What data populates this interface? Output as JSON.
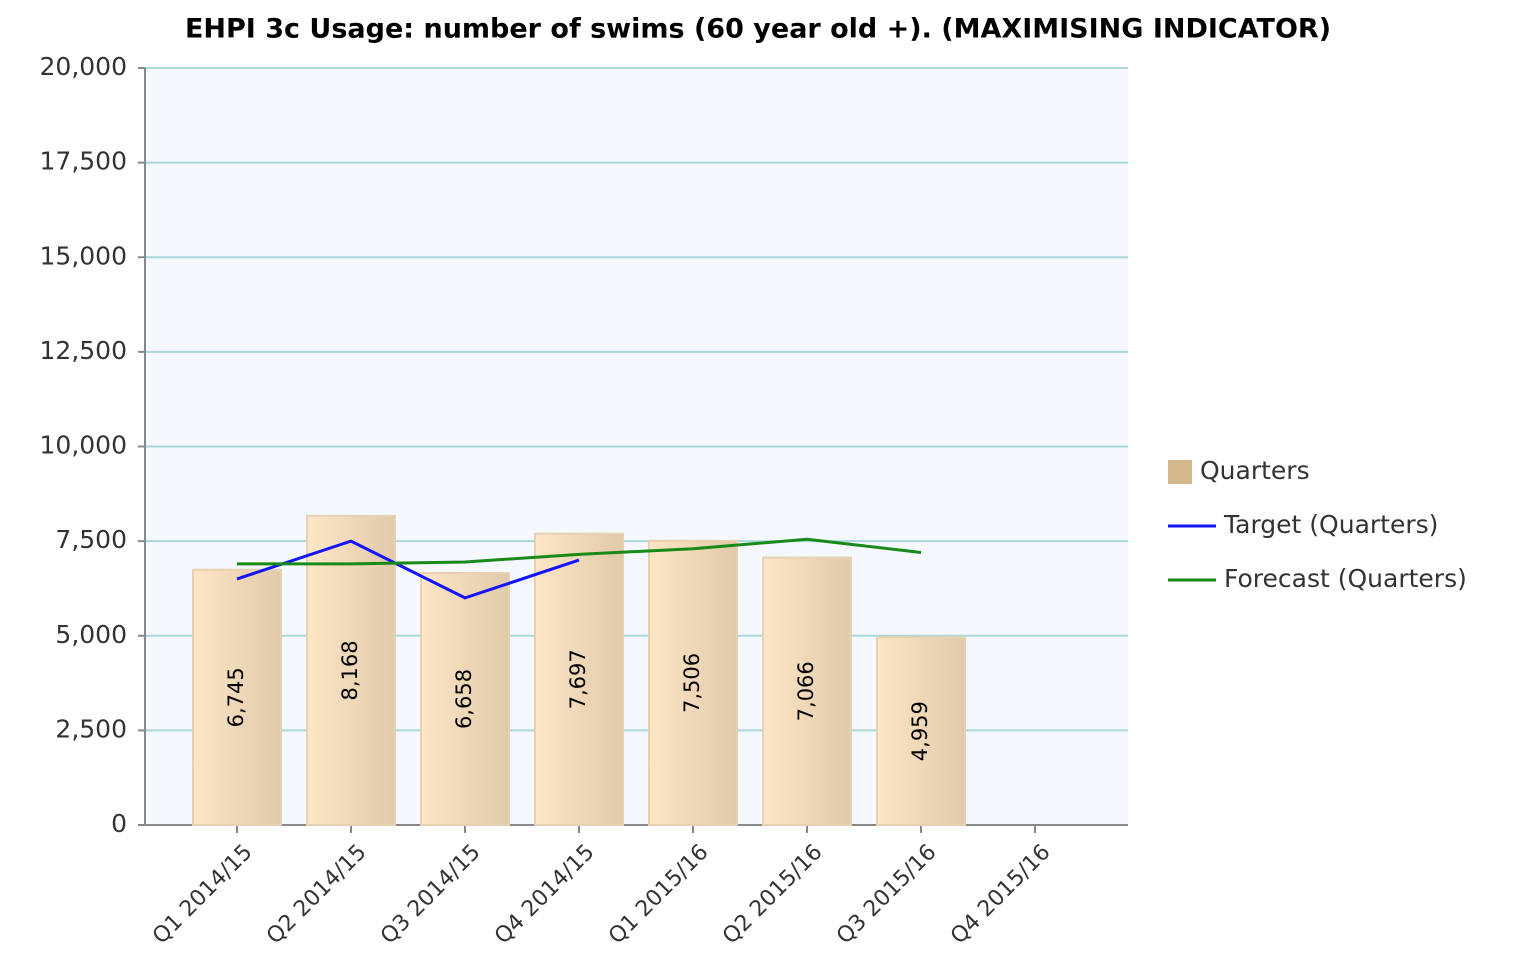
{
  "chart_data": {
    "type": "bar",
    "title": "EHPI 3c Usage: number of swims (60 year old +). (MAXIMISING INDICATOR)",
    "categories": [
      "Q1 2014/15",
      "Q2 2014/15",
      "Q3 2014/15",
      "Q4 2014/15",
      "Q1 2015/16",
      "Q2 2015/16",
      "Q3 2015/16",
      "Q4 2015/16"
    ],
    "series": [
      {
        "name": "Quarters",
        "type": "bar",
        "color": "#d4b88c",
        "values": [
          6745,
          8168,
          6658,
          7697,
          7506,
          7066,
          4959,
          null
        ],
        "value_labels": [
          "6,745",
          "8,168",
          "6,658",
          "7,697",
          "7,506",
          "7,066",
          "4,959",
          null
        ]
      },
      {
        "name": "Target (Quarters)",
        "type": "line",
        "color": "#1414ff",
        "values": [
          6500,
          7500,
          6000,
          7000,
          null,
          null,
          null,
          null
        ]
      },
      {
        "name": "Forecast (Quarters)",
        "type": "line",
        "color": "#178a17",
        "values": [
          6900,
          6900,
          6950,
          7150,
          7300,
          7550,
          7200,
          null
        ]
      }
    ],
    "ylim": [
      0,
      20000
    ],
    "yticks": [
      0,
      {
        "value": 2500,
        "label": "2,500"
      },
      {
        "value": 5000,
        "label": "5,000"
      },
      {
        "value": 7500,
        "label": "7,500"
      },
      {
        "value": 10000,
        "label": "10,000"
      },
      {
        "value": 12500,
        "label": "12,500"
      },
      {
        "value": 15000,
        "label": "15,000"
      },
      {
        "value": 17500,
        "label": "17,500"
      },
      {
        "value": 20000,
        "label": "20,000"
      }
    ],
    "grid": true,
    "legend": "right"
  }
}
